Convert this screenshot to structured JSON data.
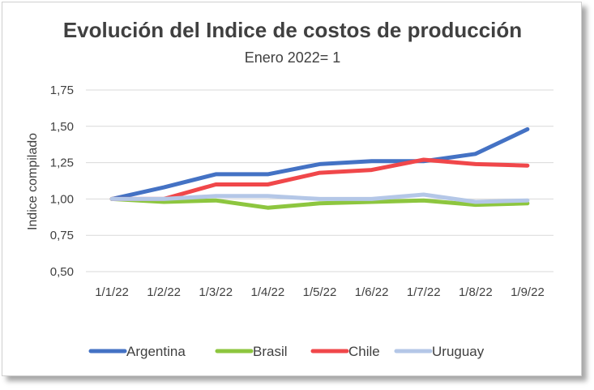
{
  "chart_data": {
    "type": "line",
    "title": "Evolución del Indice de costos de producción",
    "subtitle": "Enero 2022= 1",
    "xlabel": "",
    "ylabel": "Indice compilado",
    "categories": [
      "1/1/22",
      "1/2/22",
      "1/3/22",
      "1/4/22",
      "1/5/22",
      "1/6/22",
      "1/7/22",
      "1/8/22",
      "1/9/22"
    ],
    "ylim": [
      0.5,
      1.75
    ],
    "yticks": [
      0.5,
      0.75,
      1.0,
      1.25,
      1.5,
      1.75
    ],
    "ytick_labels": [
      "0,50",
      "0,75",
      "1,00",
      "1,25",
      "1,50",
      "1,75"
    ],
    "grid": true,
    "legend_position": "bottom",
    "series": [
      {
        "name": "Argentina",
        "color": "#4472c4",
        "values": [
          1.0,
          1.08,
          1.17,
          1.17,
          1.24,
          1.26,
          1.26,
          1.31,
          1.48
        ]
      },
      {
        "name": "Brasil",
        "color": "#8dc63f",
        "values": [
          1.0,
          0.98,
          0.99,
          0.94,
          0.97,
          0.98,
          0.99,
          0.96,
          0.97
        ]
      },
      {
        "name": "Chile",
        "color": "#f0474a",
        "values": [
          1.0,
          1.0,
          1.1,
          1.1,
          1.18,
          1.2,
          1.27,
          1.24,
          1.23
        ]
      },
      {
        "name": "Uruguay",
        "color": "#b4c7e7",
        "values": [
          1.0,
          1.0,
          1.02,
          1.02,
          1.0,
          1.0,
          1.03,
          0.98,
          0.99
        ]
      }
    ]
  }
}
